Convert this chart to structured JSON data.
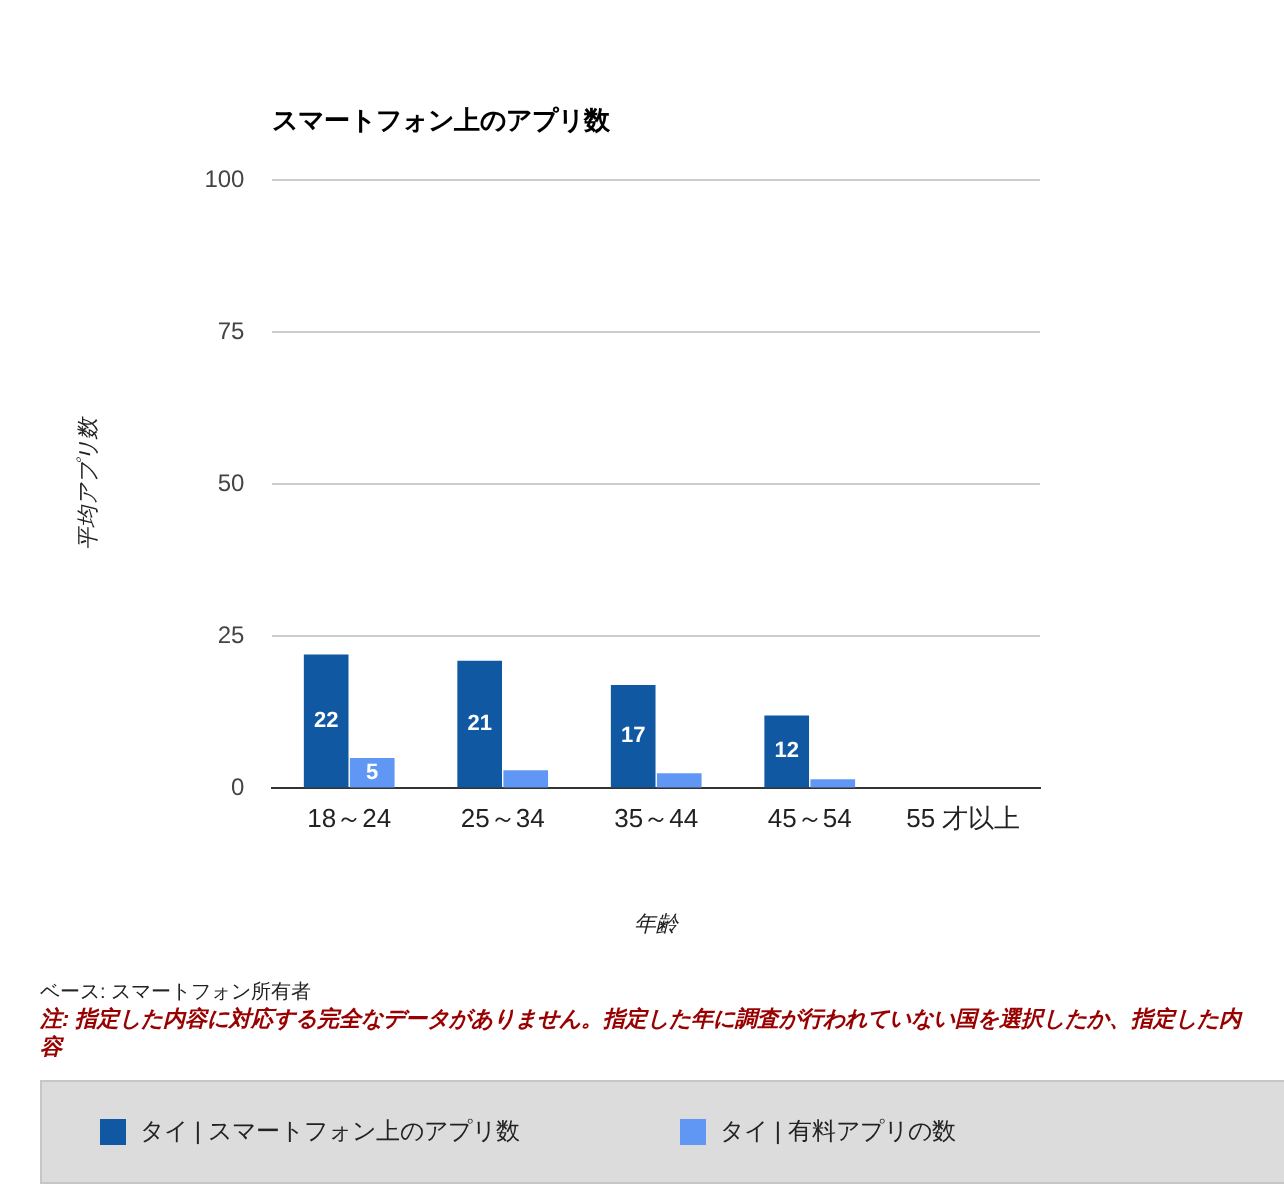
{
  "chart_data": {
    "type": "bar",
    "title": "スマートフォン上のアプリ数",
    "xlabel": "年齢",
    "ylabel": "平均アプリ数",
    "categories": [
      "18～24",
      "25～34",
      "35～44",
      "45～54",
      "55 才以上"
    ],
    "series": [
      {
        "name": "タイ | スマートフォン上のアプリ数",
        "color": "#1158a2",
        "values": [
          22,
          21,
          17,
          12,
          null
        ],
        "value_labels": [
          "22",
          "21",
          "17",
          "12",
          null
        ]
      },
      {
        "name": "タイ | 有料アプリの数",
        "color": "#6197f4",
        "values": [
          5,
          3,
          2.5,
          1.5,
          null
        ],
        "value_labels": [
          "5",
          null,
          null,
          null,
          null
        ]
      }
    ],
    "ylim": [
      0,
      100
    ],
    "yticks": [
      0,
      25,
      50,
      75,
      100
    ],
    "grid": "y",
    "legend": "bottom",
    "annotations": [
      "ベース: スマートフォン所有者",
      "注: 指定した内容に対応する完全なデータがありません。指定した年に調査が行われていない国を選択したか、指定した内容"
    ]
  }
}
